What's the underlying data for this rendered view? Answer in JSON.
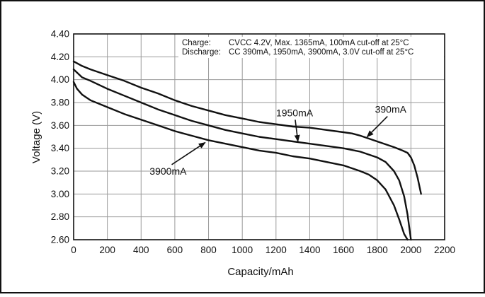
{
  "chart_data": {
    "type": "line",
    "xlabel": "Capacity/mAh",
    "ylabel": "Voltage (V)",
    "xlim": [
      0,
      2200
    ],
    "ylim": [
      2.6,
      4.4
    ],
    "grid": true,
    "xticks": [
      0,
      200,
      400,
      600,
      800,
      1000,
      1200,
      1400,
      1600,
      1800,
      2000,
      2200
    ],
    "yticks": [
      2.6,
      2.8,
      3.0,
      3.2,
      3.4,
      3.6,
      3.8,
      4.0,
      4.2,
      4.4
    ],
    "xtick_labels": [
      "0",
      "200",
      "400",
      "600",
      "800",
      "1000",
      "1200",
      "1400",
      "1600",
      "1800",
      "2000",
      "2200"
    ],
    "ytick_labels": [
      "2.60",
      "2.80",
      "3.00",
      "3.20",
      "3.40",
      "3.60",
      "3.80",
      "4.00",
      "4.20",
      "4.40"
    ],
    "notes": [
      {
        "label": "Charge:",
        "text": "CVCC 4.2V, Max. 1365mA, 100mA cut-off at 25°C"
      },
      {
        "label": "Discharge:",
        "text": "CC 390mA, 1950mA, 3900mA, 3.0V cut-off at 25°C"
      }
    ],
    "series": [
      {
        "name": "390mA",
        "x": [
          0,
          50,
          100,
          200,
          300,
          400,
          500,
          600,
          700,
          800,
          900,
          1000,
          1100,
          1200,
          1300,
          1400,
          1500,
          1600,
          1650,
          1700,
          1800,
          1900,
          1950,
          1980,
          2000,
          2020,
          2040,
          2060
        ],
        "y": [
          4.16,
          4.12,
          4.09,
          4.04,
          3.99,
          3.93,
          3.88,
          3.82,
          3.77,
          3.73,
          3.69,
          3.66,
          3.63,
          3.61,
          3.59,
          3.58,
          3.56,
          3.54,
          3.53,
          3.51,
          3.46,
          3.41,
          3.38,
          3.36,
          3.32,
          3.25,
          3.14,
          3.0
        ]
      },
      {
        "name": "1950mA",
        "x": [
          0,
          50,
          100,
          200,
          300,
          400,
          500,
          600,
          700,
          800,
          900,
          1000,
          1100,
          1200,
          1300,
          1400,
          1500,
          1600,
          1700,
          1800,
          1850,
          1900,
          1930,
          1960,
          1980,
          2000
        ],
        "y": [
          4.09,
          4.02,
          3.99,
          3.92,
          3.86,
          3.8,
          3.74,
          3.69,
          3.64,
          3.6,
          3.56,
          3.53,
          3.5,
          3.48,
          3.46,
          3.44,
          3.42,
          3.4,
          3.37,
          3.32,
          3.28,
          3.2,
          3.12,
          2.98,
          2.82,
          2.6
        ]
      },
      {
        "name": "3900mA",
        "x": [
          0,
          20,
          50,
          100,
          200,
          300,
          400,
          500,
          600,
          700,
          800,
          900,
          1000,
          1100,
          1200,
          1300,
          1400,
          1500,
          1600,
          1700,
          1750,
          1800,
          1850,
          1900,
          1930,
          1960,
          1980
        ],
        "y": [
          3.98,
          3.92,
          3.87,
          3.82,
          3.76,
          3.7,
          3.65,
          3.6,
          3.55,
          3.51,
          3.47,
          3.44,
          3.41,
          3.38,
          3.36,
          3.33,
          3.31,
          3.28,
          3.25,
          3.2,
          3.17,
          3.12,
          3.04,
          2.9,
          2.78,
          2.65,
          2.6
        ]
      }
    ],
    "annotations": [
      {
        "text": "390mA",
        "x": 1880,
        "y": 3.71,
        "arrow_to_x": 1740,
        "arrow_to_y": 3.5
      },
      {
        "text": "1950mA",
        "x": 1310,
        "y": 3.68,
        "arrow_to_x": 1330,
        "arrow_to_y": 3.46
      },
      {
        "text": "3900mA",
        "x": 560,
        "y": 3.17,
        "arrow_to_x": 780,
        "arrow_to_y": 3.45
      }
    ]
  }
}
